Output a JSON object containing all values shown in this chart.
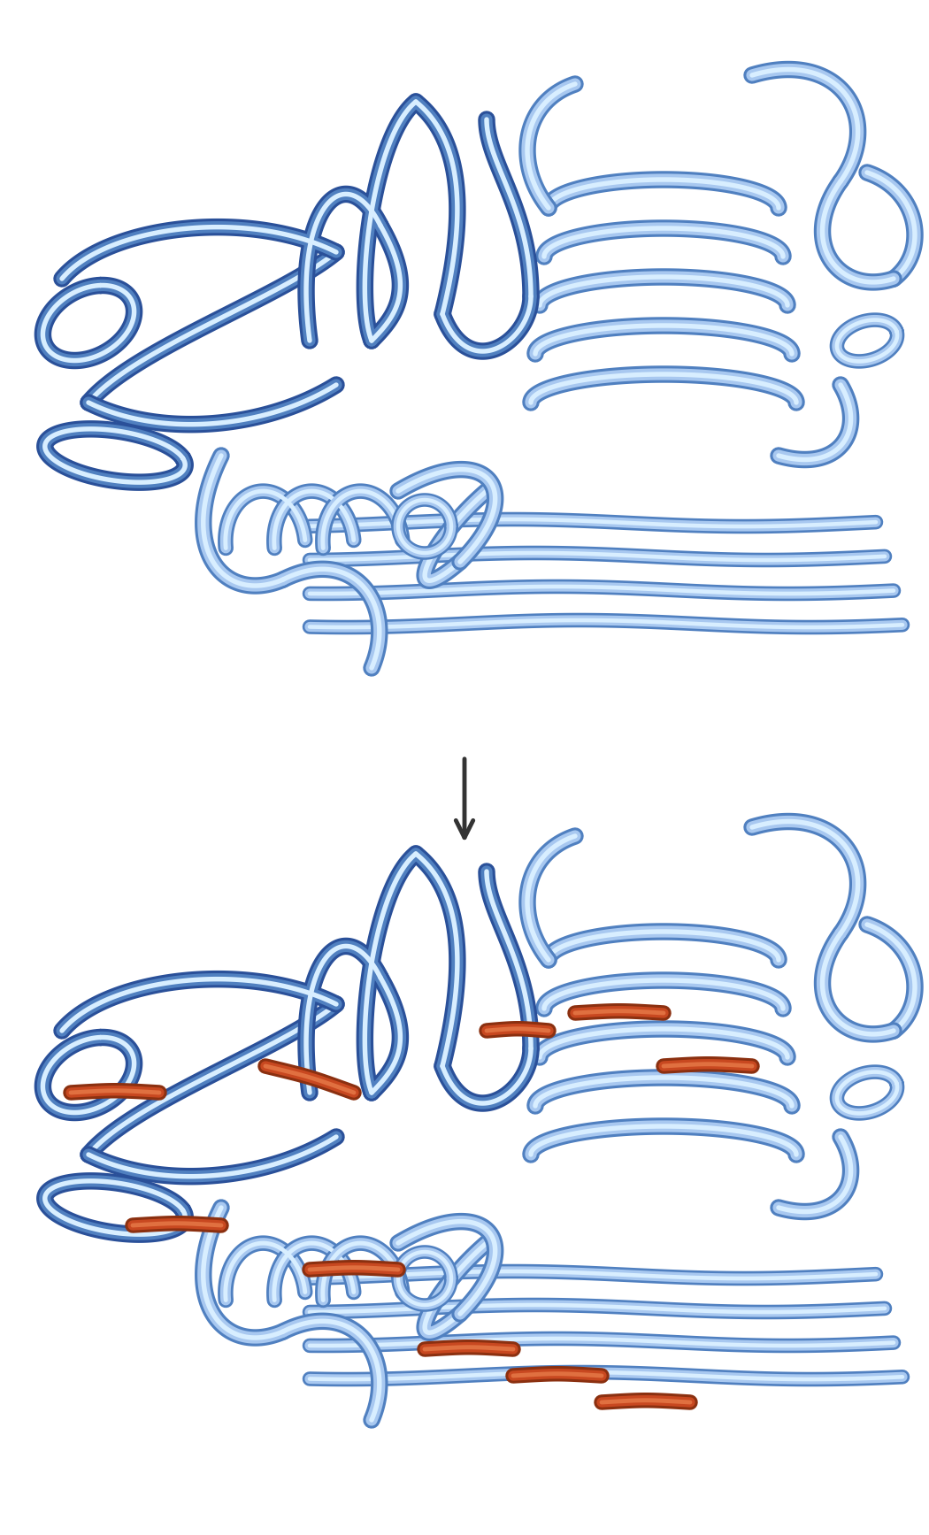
{
  "bg_color": "#ffffff",
  "dark_blue": "#2a5099",
  "mid_blue": "#5080c0",
  "light_blue": "#a8c8f0",
  "very_light_blue": "#d8eeff",
  "crosslink_dark": "#8b3010",
  "crosslink_mid": "#c84820",
  "crosslink_light": "#e07040",
  "arrow_color": "#333333",
  "figsize": [
    10.5,
    17.35
  ],
  "dpi": 100
}
